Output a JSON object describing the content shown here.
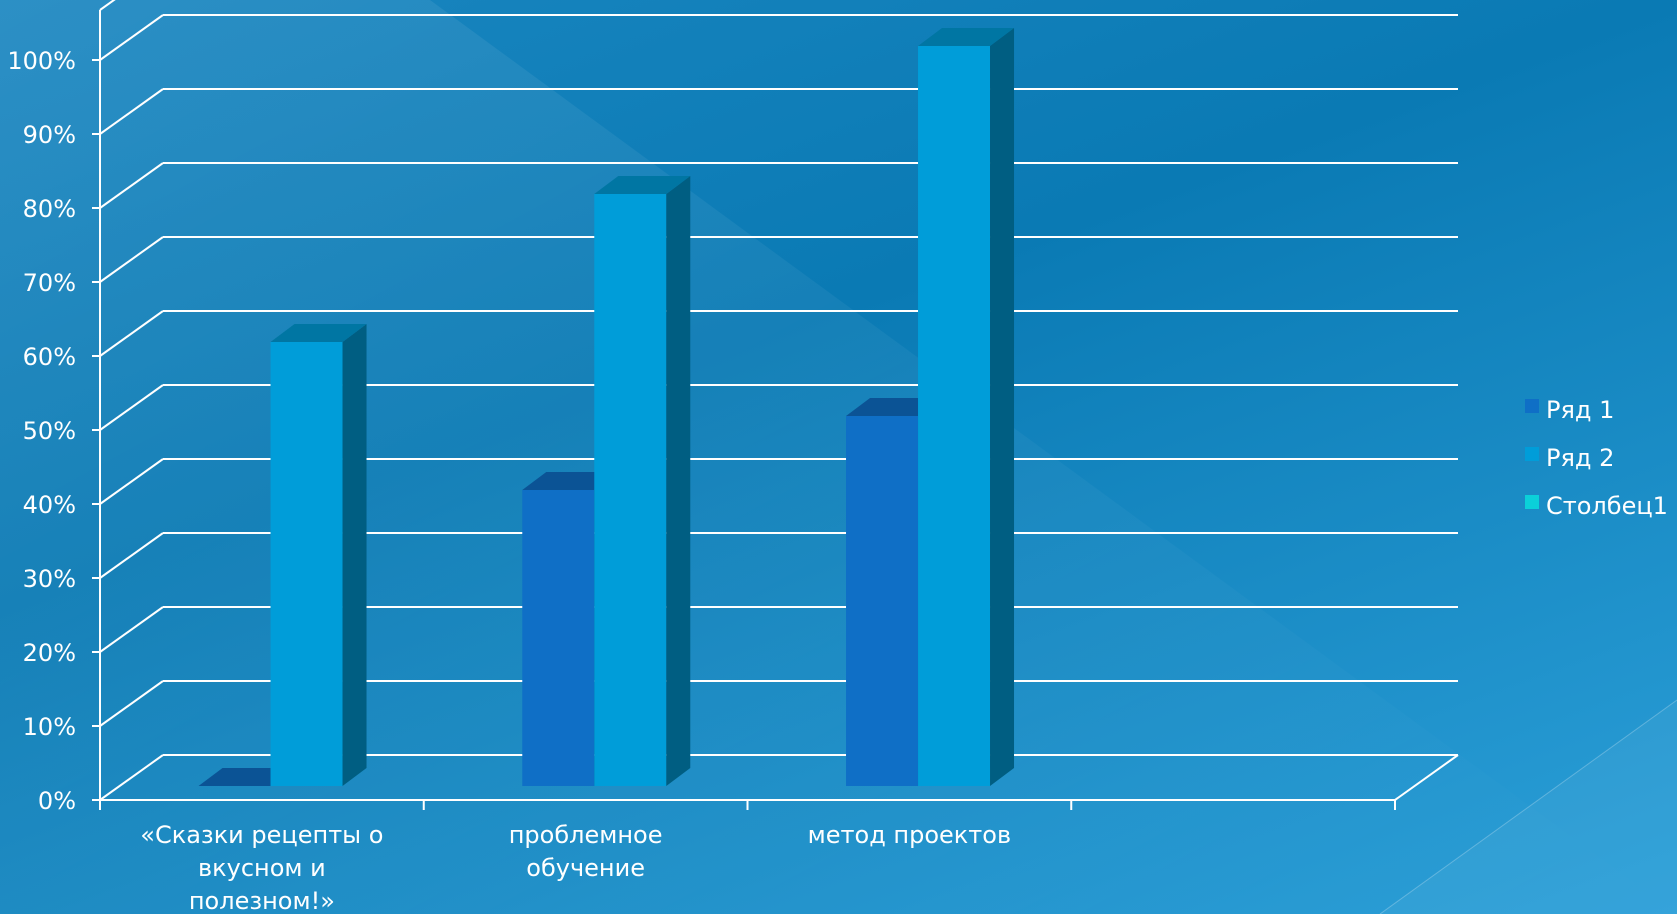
{
  "chart_data": {
    "type": "bar",
    "categories": [
      [
        "«Сказки рецепты о",
        "вкусном и",
        "полезном!»"
      ],
      [
        "проблемное",
        "обучение"
      ],
      [
        "метод проектов"
      ],
      [
        ""
      ]
    ],
    "series": [
      {
        "name": "Ряд 1",
        "values": [
          0,
          40,
          50,
          null
        ],
        "color": "#0f6fc6"
      },
      {
        "name": "Ряд 2",
        "values": [
          60,
          80,
          100,
          null
        ],
        "color": "#009dd9"
      },
      {
        "name": "Столбец1",
        "values": [
          null,
          null,
          null,
          null
        ],
        "color": "#0bd0d9"
      }
    ],
    "yticks": [
      "0%",
      "10%",
      "20%",
      "30%",
      "40%",
      "50%",
      "60%",
      "70%",
      "80%",
      "90%",
      "100%"
    ],
    "ylim": [
      0,
      100
    ],
    "grid": true,
    "legend": "right",
    "title": "",
    "xlabel": "",
    "ylabel": ""
  }
}
